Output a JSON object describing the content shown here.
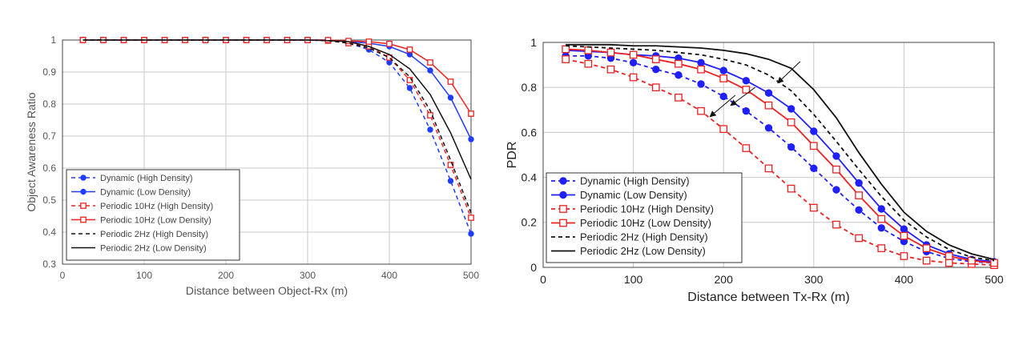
{
  "chart_data": [
    {
      "type": "line",
      "xlabel": "Distance between Object-Rx (m)",
      "ylabel": "Object Awareness Ratio",
      "xlim": [
        0,
        500
      ],
      "ylim": [
        0.3,
        1
      ],
      "xticks": [
        "0",
        "100",
        "200",
        "300",
        "400",
        "500"
      ],
      "yticks": [
        "0.3",
        "0.4",
        "0.5",
        "0.6",
        "0.7",
        "0.8",
        "0.9",
        "1"
      ],
      "grid": true,
      "legend": "bottom-left",
      "x": [
        25,
        50,
        75,
        100,
        125,
        150,
        175,
        200,
        225,
        250,
        275,
        300,
        325,
        350,
        375,
        400,
        425,
        450,
        475,
        500
      ],
      "series": [
        {
          "name": "Dynamic (High Density)",
          "color": "#1f3cff",
          "dash": true,
          "marker": "dot",
          "values": [
            1,
            1,
            1,
            1,
            1,
            1,
            1,
            1,
            1,
            1,
            1,
            1,
            0.998,
            0.99,
            0.97,
            0.93,
            0.85,
            0.72,
            0.56,
            0.395
          ]
        },
        {
          "name": "Dynamic (Low Density)",
          "color": "#1f3cff",
          "dash": false,
          "marker": "dot",
          "values": [
            1,
            1,
            1,
            1,
            1,
            1,
            1,
            1,
            1,
            1,
            1,
            1,
            1,
            0.995,
            0.99,
            0.98,
            0.955,
            0.905,
            0.82,
            0.69
          ]
        },
        {
          "name": "Periodic 10Hz (High Density)",
          "color": "#ee2222",
          "dash": true,
          "marker": "square",
          "values": [
            1,
            1,
            1,
            1,
            1,
            1,
            1,
            1,
            1,
            1,
            1,
            1,
            0.998,
            0.99,
            0.98,
            0.945,
            0.875,
            0.765,
            0.61,
            0.445
          ]
        },
        {
          "name": "Periodic 10Hz (Low Density)",
          "color": "#ee2222",
          "dash": false,
          "marker": "square",
          "values": [
            1,
            1,
            1,
            1,
            1,
            1,
            1,
            1,
            1,
            1,
            1,
            1,
            1,
            0.997,
            0.995,
            0.988,
            0.97,
            0.93,
            0.87,
            0.77
          ]
        },
        {
          "name": "Periodic 2Hz (High Density)",
          "color": "#111111",
          "dash": true,
          "marker": "none",
          "values": [
            1,
            1,
            1,
            1,
            1,
            1,
            1,
            1,
            1,
            1,
            1,
            1,
            0.998,
            0.99,
            0.975,
            0.945,
            0.885,
            0.78,
            0.625,
            0.46
          ]
        },
        {
          "name": "Periodic 2Hz (Low Density)",
          "color": "#111111",
          "dash": false,
          "marker": "none",
          "values": [
            1,
            1,
            1,
            1,
            1,
            1,
            1,
            1,
            1,
            1,
            1,
            1,
            0.998,
            0.995,
            0.98,
            0.955,
            0.91,
            0.83,
            0.71,
            0.565
          ]
        }
      ]
    },
    {
      "type": "line",
      "xlabel": "Distance between Tx-Rx (m)",
      "ylabel": "PDR",
      "xlim": [
        0,
        500
      ],
      "ylim": [
        0,
        1
      ],
      "xticks": [
        "0",
        "100",
        "200",
        "300",
        "400",
        "500"
      ],
      "yticks": [
        "0",
        "0.2",
        "0.4",
        "0.6",
        "0.8",
        "1"
      ],
      "grid": true,
      "legend": "bottom-left",
      "x": [
        25,
        50,
        75,
        100,
        125,
        150,
        175,
        200,
        225,
        250,
        275,
        300,
        325,
        350,
        375,
        400,
        425,
        450,
        475,
        500
      ],
      "series": [
        {
          "name": "Dynamic (High Density)",
          "color": "#1f1fff",
          "dash": true,
          "marker": "dot",
          "values": [
            0.94,
            0.94,
            0.93,
            0.91,
            0.88,
            0.855,
            0.815,
            0.76,
            0.695,
            0.62,
            0.535,
            0.44,
            0.345,
            0.255,
            0.175,
            0.115,
            0.07,
            0.04,
            0.025,
            0.02
          ]
        },
        {
          "name": "Dynamic (Low Density)",
          "color": "#1f1fff",
          "dash": false,
          "marker": "dot",
          "values": [
            0.965,
            0.96,
            0.955,
            0.945,
            0.94,
            0.93,
            0.91,
            0.875,
            0.83,
            0.775,
            0.705,
            0.605,
            0.495,
            0.375,
            0.26,
            0.17,
            0.1,
            0.06,
            0.035,
            0.025
          ]
        },
        {
          "name": "Periodic 10Hz (High Density)",
          "color": "#ee2020",
          "dash": true,
          "marker": "square",
          "values": [
            0.925,
            0.905,
            0.88,
            0.845,
            0.8,
            0.755,
            0.695,
            0.615,
            0.53,
            0.44,
            0.35,
            0.265,
            0.19,
            0.13,
            0.085,
            0.05,
            0.03,
            0.02,
            0.015,
            0.01
          ]
        },
        {
          "name": "Periodic 10Hz (Low Density)",
          "color": "#ee2020",
          "dash": false,
          "marker": "square",
          "values": [
            0.97,
            0.965,
            0.955,
            0.945,
            0.925,
            0.905,
            0.88,
            0.84,
            0.79,
            0.72,
            0.645,
            0.54,
            0.435,
            0.32,
            0.215,
            0.14,
            0.085,
            0.05,
            0.03,
            0.02
          ]
        },
        {
          "name": "Periodic 2Hz (High Density)",
          "color": "#111111",
          "dash": true,
          "marker": "none",
          "values": [
            0.985,
            0.98,
            0.975,
            0.97,
            0.965,
            0.955,
            0.945,
            0.925,
            0.9,
            0.855,
            0.785,
            0.68,
            0.56,
            0.435,
            0.315,
            0.21,
            0.135,
            0.08,
            0.045,
            0.03
          ]
        },
        {
          "name": "Periodic 2Hz (Low Density)",
          "color": "#111111",
          "dash": false,
          "marker": "none",
          "values": [
            0.99,
            0.99,
            0.99,
            0.985,
            0.985,
            0.98,
            0.975,
            0.965,
            0.95,
            0.925,
            0.885,
            0.79,
            0.665,
            0.51,
            0.37,
            0.245,
            0.16,
            0.1,
            0.06,
            0.035
          ]
        }
      ]
    }
  ]
}
